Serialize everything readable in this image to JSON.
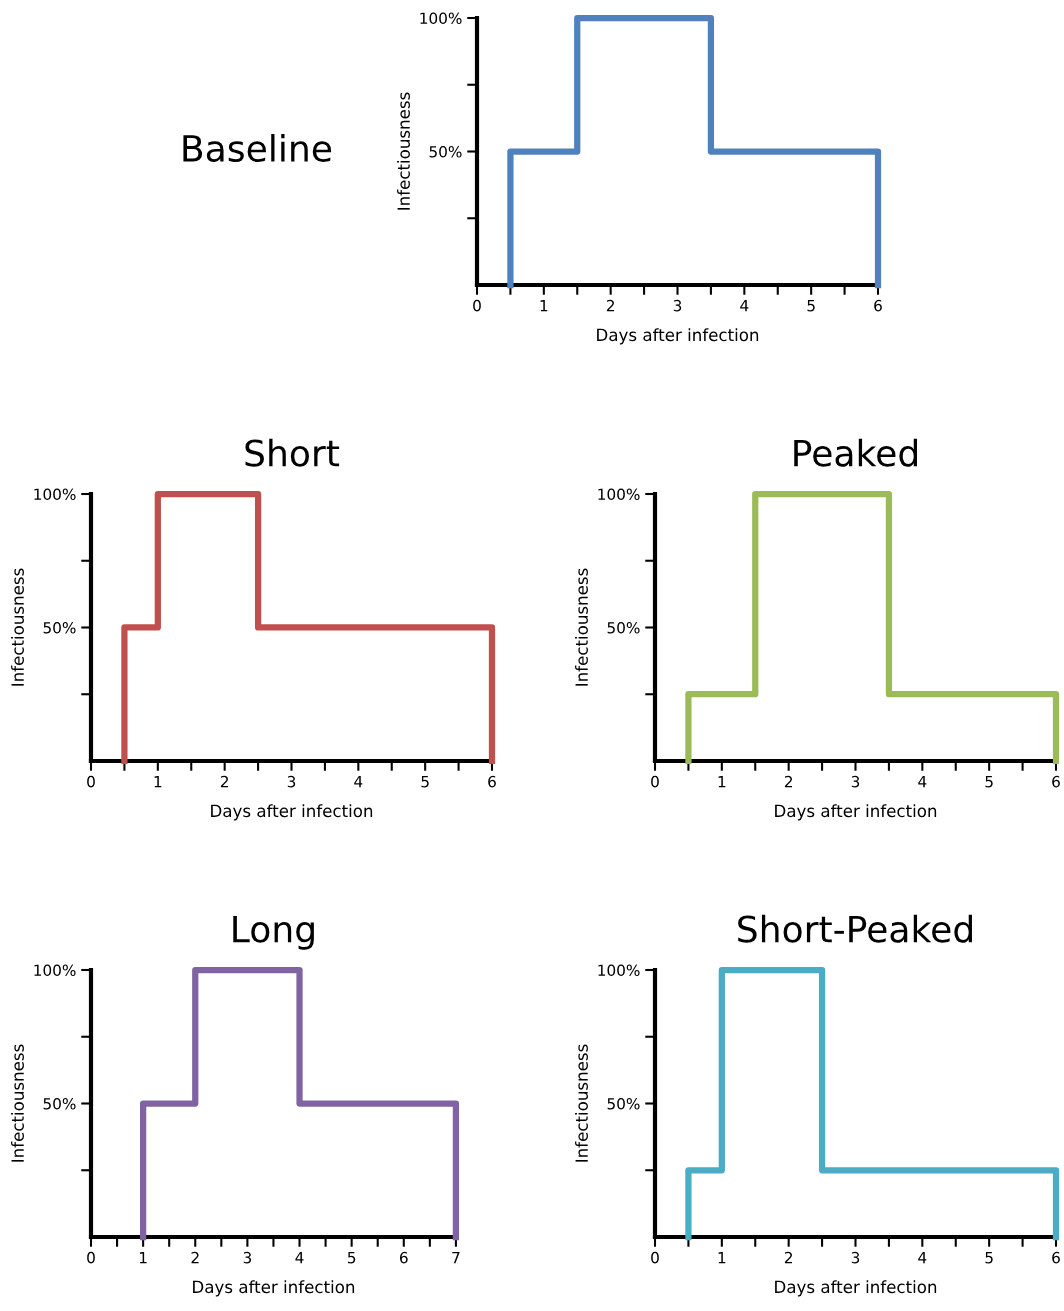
{
  "chart_data": [
    {
      "type": "step",
      "title": "Baseline",
      "xlabel": "Days after infection",
      "ylabel": "Infectiousness",
      "xlim": [
        0,
        6
      ],
      "xticks": [
        0,
        {
          "value": 0.5,
          "label": null
        },
        1,
        {
          "value": 1.5,
          "label": null
        },
        2,
        {
          "value": 2.5,
          "label": null
        },
        3,
        {
          "value": 3.5,
          "label": null
        },
        4,
        {
          "value": 4.5,
          "label": null
        },
        5,
        {
          "value": 5.5,
          "label": null
        },
        6
      ],
      "ylim": [
        0,
        100
      ],
      "yticks": [
        {
          "value": 25,
          "label": null
        },
        {
          "value": 50,
          "label": "50%"
        },
        {
          "value": 75,
          "label": null
        },
        {
          "value": 100,
          "label": "100%"
        }
      ],
      "grid": false,
      "series": [
        {
          "color": "#4f81bd",
          "x": [
            0.5,
            0.5,
            1.5,
            3.5,
            6
          ],
          "values": [
            0,
            50,
            100,
            50,
            0
          ]
        }
      ]
    },
    {
      "type": "step",
      "title": "Short",
      "xlabel": "Days after infection",
      "ylabel": "Infectiousness",
      "xlim": [
        0,
        6
      ],
      "xticks": [
        0,
        {
          "value": 0.5,
          "label": null
        },
        1,
        {
          "value": 1.5,
          "label": null
        },
        2,
        {
          "value": 2.5,
          "label": null
        },
        3,
        {
          "value": 3.5,
          "label": null
        },
        4,
        {
          "value": 4.5,
          "label": null
        },
        5,
        {
          "value": 5.5,
          "label": null
        },
        6
      ],
      "ylim": [
        0,
        100
      ],
      "yticks": [
        {
          "value": 25,
          "label": null
        },
        {
          "value": 50,
          "label": "50%"
        },
        {
          "value": 75,
          "label": null
        },
        {
          "value": 100,
          "label": "100%"
        }
      ],
      "grid": false,
      "series": [
        {
          "color": "#c0504d",
          "x": [
            0.5,
            0.5,
            1,
            2.5,
            6
          ],
          "values": [
            0,
            50,
            100,
            50,
            0
          ]
        }
      ]
    },
    {
      "type": "step",
      "title": "Peaked",
      "xlabel": "Days after infection",
      "ylabel": "Infectiousness",
      "xlim": [
        0,
        6
      ],
      "xticks": [
        0,
        {
          "value": 0.5,
          "label": null
        },
        1,
        {
          "value": 1.5,
          "label": null
        },
        2,
        {
          "value": 2.5,
          "label": null
        },
        3,
        {
          "value": 3.5,
          "label": null
        },
        4,
        {
          "value": 4.5,
          "label": null
        },
        5,
        {
          "value": 5.5,
          "label": null
        },
        6
      ],
      "ylim": [
        0,
        100
      ],
      "yticks": [
        {
          "value": 25,
          "label": null
        },
        {
          "value": 50,
          "label": "50%"
        },
        {
          "value": 75,
          "label": null
        },
        {
          "value": 100,
          "label": "100%"
        }
      ],
      "grid": false,
      "series": [
        {
          "color": "#9bbb59",
          "x": [
            0.5,
            0.5,
            1.5,
            3.5,
            6
          ],
          "values": [
            0,
            25,
            100,
            25,
            0
          ]
        }
      ]
    },
    {
      "type": "step",
      "title": "Long",
      "xlabel": "Days after infection",
      "ylabel": "Infectiousness",
      "xlim": [
        0,
        7
      ],
      "xticks": [
        0,
        {
          "value": 0.5,
          "label": null
        },
        1,
        {
          "value": 1.5,
          "label": null
        },
        2,
        {
          "value": 2.5,
          "label": null
        },
        3,
        {
          "value": 3.5,
          "label": null
        },
        4,
        {
          "value": 4.5,
          "label": null
        },
        5,
        {
          "value": 5.5,
          "label": null
        },
        6,
        {
          "value": 6.5,
          "label": null
        },
        7
      ],
      "ylim": [
        0,
        100
      ],
      "yticks": [
        {
          "value": 25,
          "label": null
        },
        {
          "value": 50,
          "label": "50%"
        },
        {
          "value": 75,
          "label": null
        },
        {
          "value": 100,
          "label": "100%"
        }
      ],
      "grid": false,
      "series": [
        {
          "color": "#8064a2",
          "x": [
            1,
            1,
            2,
            4,
            7
          ],
          "values": [
            0,
            50,
            100,
            50,
            0
          ]
        }
      ]
    },
    {
      "type": "step",
      "title": "Short-Peaked",
      "xlabel": "Days after infection",
      "ylabel": "Infectiousness",
      "xlim": [
        0,
        6
      ],
      "xticks": [
        0,
        {
          "value": 0.5,
          "label": null
        },
        1,
        {
          "value": 1.5,
          "label": null
        },
        2,
        {
          "value": 2.5,
          "label": null
        },
        3,
        {
          "value": 3.5,
          "label": null
        },
        4,
        {
          "value": 4.5,
          "label": null
        },
        5,
        {
          "value": 5.5,
          "label": null
        },
        6
      ],
      "ylim": [
        0,
        100
      ],
      "yticks": [
        {
          "value": 25,
          "label": null
        },
        {
          "value": 50,
          "label": "50%"
        },
        {
          "value": 75,
          "label": null
        },
        {
          "value": 100,
          "label": "100%"
        }
      ],
      "grid": false,
      "series": [
        {
          "color": "#4bacc6",
          "x": [
            0.5,
            0.5,
            1,
            2.5,
            6
          ],
          "values": [
            0,
            25,
            100,
            25,
            0
          ]
        }
      ]
    }
  ]
}
